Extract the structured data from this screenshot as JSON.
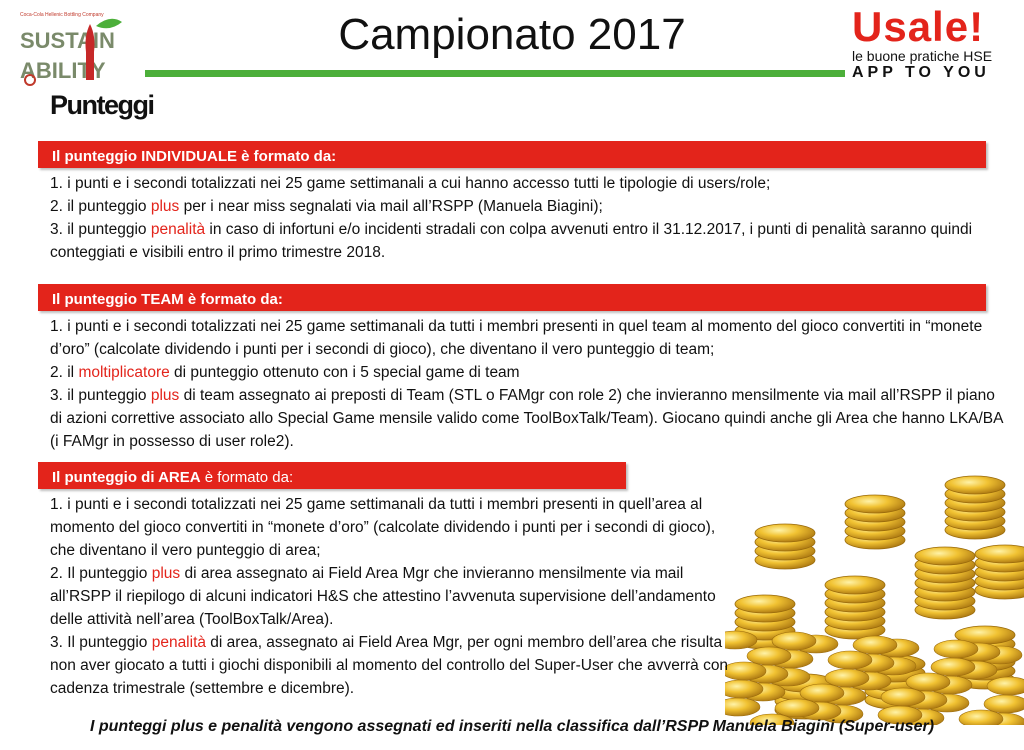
{
  "header": {
    "title": "Campionato 2017",
    "left_logo": {
      "line1": "SUSTAIN",
      "line2": "ABILITY",
      "small": "Coca-Cola Hellenic Bottling Company"
    },
    "right_logo": {
      "brand": "Usale!",
      "tagline": "le buone pratiche HSE",
      "slogan": "APP TO YOU"
    },
    "colors": {
      "accent_red": "#e3241b",
      "accent_green": "#4caf3a"
    }
  },
  "heading": "Punteggi",
  "sections": {
    "individual": {
      "band_bold": "Il punteggio INDIVIDUALE è formato da:",
      "band_normal": "",
      "lines": [
        {
          "pre": "1. i punti e i secondi totalizzati nei 25 game settimanali a cui hanno accesso tutti le tipologie di users/role;",
          "hl": "",
          "post": ""
        },
        {
          "pre": "2. il punteggio ",
          "hl": "plus",
          "post": " per i near miss segnalati via mail all’RSPP (Manuela Biagini);"
        },
        {
          "pre": "3. il punteggio ",
          "hl": "penalità",
          "post": " in caso di infortuni e/o incidenti stradali con colpa avvenuti entro il 31.12.2017, i punti di penalità saranno quindi conteggiati e visibili entro il primo trimestre 2018."
        }
      ]
    },
    "team": {
      "band_bold": "Il punteggio TEAM è formato da:",
      "band_normal": "",
      "lines": [
        {
          "pre": "1. i punti e i secondi totalizzati nei 25 game settimanali da tutti i membri  presenti in quel team al momento del gioco convertiti in “monete d’oro” (calcolate dividendo i punti per i secondi di gioco), che diventano il vero punteggio di team;",
          "hl": "",
          "post": ""
        },
        {
          "pre": "2. il ",
          "hl": "moltiplicatore",
          "post": " di punteggio  ottenuto con i 5 special game di team"
        },
        {
          "pre": "3. il punteggio ",
          "hl": "plus",
          "post": " di team assegnato ai preposti di Team (STL o FAMgr con role 2) che invieranno mensilmente via mail all’RSPP il piano di azioni correttive associato allo Special Game mensile valido come ToolBoxTalk/Team). Giocano quindi anche gli Area che hanno LKA/BA (i FAMgr in possesso di user role2)."
        }
      ]
    },
    "area": {
      "band_bold": "Il punteggio di AREA",
      "band_normal": " è formato da:",
      "lines": [
        {
          "pre": "1. i punti e i secondi totalizzati nei 25 game settimanali da tutti i membri  presenti in quell’area al momento del gioco convertiti in “monete d’oro” (calcolate dividendo i punti per i secondi di gioco), che diventano il vero punteggio di area;",
          "hl": "",
          "post": ""
        },
        {
          "pre": "2. Il punteggio ",
          "hl": "plus",
          "post": " di area assegnato ai Field Area Mgr che invieranno mensilmente via mail all’RSPP il riepilogo di alcuni indicatori H&S che attestino l’avvenuta supervisione dell’andamento delle attività nell’area (ToolBoxTalk/Area)."
        },
        {
          "pre": "3. Il punteggio ",
          "hl": "penalità",
          "post": " di area, assegnato ai Field Area Mgr,  per ogni membro dell’area che risulta non aver giocato a tutti i giochi disponibili al momento del controllo del Super-User che avverrà con cadenza trimestrale (settembre e dicembre)."
        }
      ]
    }
  },
  "footer": "I punteggi plus e penalità vengono assegnati  ed inseriti nella classifica dall’RSPP  Manuela Biagini (Super-user)"
}
